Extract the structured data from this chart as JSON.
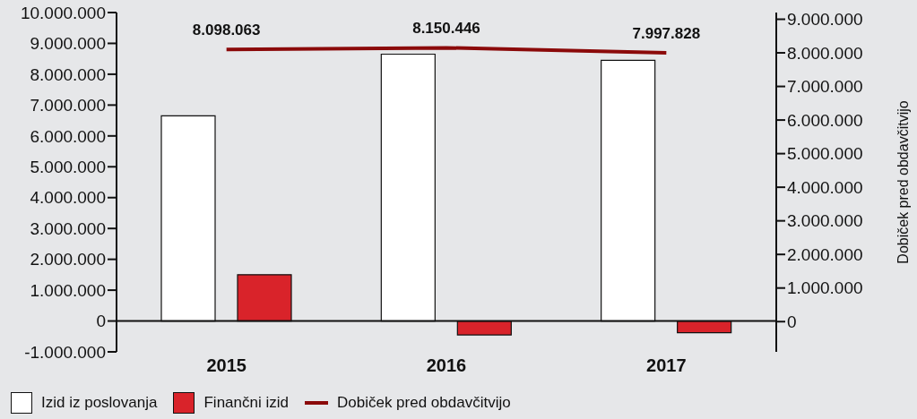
{
  "chart_data": {
    "type": "bar",
    "y2label": "Dobiček pred obdavčitvijo",
    "categories": [
      "2015",
      "2016",
      "2017"
    ],
    "series": [
      {
        "name": "Izid iz poslovanja",
        "color": "#ffffff",
        "values": [
          6650000,
          8650000,
          8450000
        ]
      },
      {
        "name": "Finančni izid",
        "color": "#d9232a",
        "values": [
          1500000,
          -450000,
          -380000
        ]
      },
      {
        "name": "Dobiček pred obdavčitvijo",
        "type": "line",
        "axis": "y2",
        "color": "#8b0a0a",
        "values": [
          8098063,
          8150446,
          7997828
        ],
        "value_labels": [
          "8.098.063",
          "8.150.446",
          "7.997.828"
        ]
      }
    ],
    "ylim": [
      -1000000,
      10000000
    ],
    "yticks": [
      {
        "value": -1000000,
        "label": "-1.000.000"
      },
      0,
      {
        "value": 1000000,
        "label": "1.000.000"
      },
      {
        "value": 2000000,
        "label": "2.000.000"
      },
      {
        "value": 3000000,
        "label": "3.000.000"
      },
      {
        "value": 4000000,
        "label": "4.000.000"
      },
      {
        "value": 5000000,
        "label": "5.000.000"
      },
      {
        "value": 6000000,
        "label": "6.000.000"
      },
      {
        "value": 7000000,
        "label": "7.000.000"
      },
      {
        "value": 8000000,
        "label": "8.000.000"
      },
      {
        "value": 9000000,
        "label": "9.000.000"
      },
      {
        "value": 10000000,
        "label": "10.000.000"
      }
    ],
    "y2lim": [
      -900000,
      9200000
    ],
    "y2ticks": [
      0,
      {
        "value": 1000000,
        "label": "1.000.000"
      },
      {
        "value": 2000000,
        "label": "2.000.000"
      },
      {
        "value": 3000000,
        "label": "3.000.000"
      },
      {
        "value": 4000000,
        "label": "4.000.000"
      },
      {
        "value": 5000000,
        "label": "5.000.000"
      },
      {
        "value": 6000000,
        "label": "6.000.000"
      },
      {
        "value": 7000000,
        "label": "7.000.000"
      },
      {
        "value": 8000000,
        "label": "8.000.000"
      },
      {
        "value": 9000000,
        "label": "9.000.000"
      }
    ],
    "grid": false,
    "legend": "bottom left",
    "marker": "none"
  }
}
